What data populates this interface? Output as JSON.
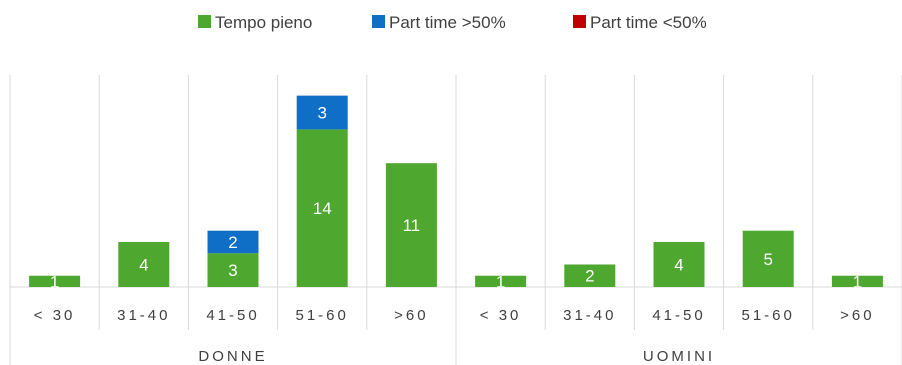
{
  "chart_data": {
    "type": "bar",
    "stacked": true,
    "groups": [
      {
        "name": "DONNE",
        "categories": [
          "< 30",
          "31-40",
          "41-50",
          "51-60",
          ">60"
        ]
      },
      {
        "name": "UOMINI",
        "categories": [
          "< 30",
          "31-40",
          "41-50",
          "51-60",
          ">60"
        ]
      }
    ],
    "series": [
      {
        "name": "Tempo pieno",
        "color": "#4ea72e",
        "values": [
          1,
          4,
          3,
          14,
          11,
          1,
          2,
          4,
          5,
          1
        ]
      },
      {
        "name": "Part time >50%",
        "color": "#0f6fc6",
        "values": [
          0,
          0,
          2,
          3,
          0,
          0,
          0,
          0,
          0,
          0
        ]
      },
      {
        "name": "Part time <50%",
        "color": "#c00000",
        "values": [
          0,
          0,
          0,
          0,
          0,
          0,
          0,
          0,
          0,
          0
        ]
      }
    ],
    "ylim": [
      0,
      17.5
    ],
    "legend": "top-center",
    "grid": "vertical category separators"
  }
}
